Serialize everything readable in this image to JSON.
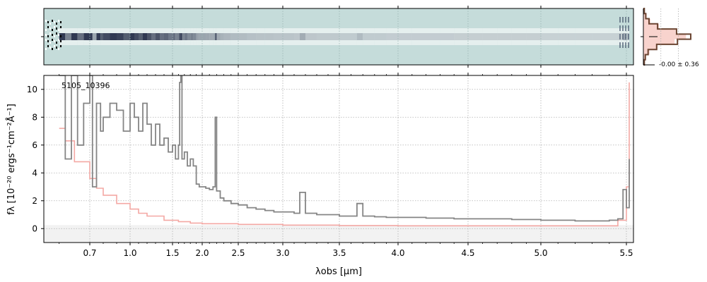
{
  "chart_data": [
    {
      "panel": "2d-spectrum",
      "type": "heatmap",
      "background_color": "#c5dcda",
      "trace_color": "#1c2540",
      "x_axis": "shared with spectrum panel",
      "tick_labels_visible": false
    },
    {
      "panel": "residual-histogram",
      "type": "bar",
      "annotation": "-0.00 ± 0.36",
      "bin_centers": [
        -3,
        -2.4,
        -1.8,
        -1.2,
        -0.6,
        0,
        0.6,
        1.2,
        1.8,
        2.4,
        3
      ],
      "counts": [
        0.02,
        0.05,
        0.12,
        0.3,
        0.7,
        1.0,
        0.72,
        0.28,
        0.1,
        0.04,
        0.02
      ],
      "reference_counts": [
        0.03,
        0.07,
        0.15,
        0.33,
        0.68,
        0.9,
        0.66,
        0.3,
        0.13,
        0.06,
        0.03
      ],
      "colors": {
        "data": "#6b4532",
        "reference": "#f6c8c0"
      }
    },
    {
      "panel": "1d-spectrum",
      "type": "line",
      "title": "5105_10396",
      "xlabel": "λobs [μm]",
      "ylabel": "fλ [10⁻²⁰ ergs⁻¹cm⁻²Å⁻¹]",
      "xlim": [
        0.55,
        5.55
      ],
      "ylim": [
        -1,
        11
      ],
      "x_ticks": [
        0.7,
        1.0,
        1.5,
        2.0,
        2.5,
        3.0,
        3.5,
        4.0,
        4.5,
        5.0,
        5.5
      ],
      "x_tick_labels": [
        "0.7",
        "1.0",
        "1.5",
        "2.0",
        "2.5",
        "3.0",
        "3.5",
        "4.0",
        "4.5",
        "5.0",
        "5.5"
      ],
      "y_ticks": [
        0,
        2,
        4,
        6,
        8,
        10
      ],
      "y_tick_labels": [
        "0",
        "2",
        "4",
        "6",
        "8",
        "10"
      ],
      "grid": true,
      "zero_line": true,
      "series": [
        {
          "role": "flux",
          "color": "#858585",
          "x": [
            0.6,
            0.62,
            0.64,
            0.66,
            0.68,
            0.7,
            0.72,
            0.75,
            0.78,
            0.8,
            0.85,
            0.9,
            0.95,
            1.0,
            1.05,
            1.1,
            1.15,
            1.2,
            1.25,
            1.3,
            1.35,
            1.4,
            1.45,
            1.5,
            1.55,
            1.6,
            1.62,
            1.64,
            1.66,
            1.7,
            1.75,
            1.8,
            1.85,
            1.9,
            1.95,
            2.0,
            2.05,
            2.1,
            2.15,
            2.18,
            2.2,
            2.25,
            2.3,
            2.4,
            2.5,
            2.6,
            2.7,
            2.8,
            2.9,
            3.0,
            3.1,
            3.15,
            3.2,
            3.3,
            3.4,
            3.5,
            3.6,
            3.65,
            3.7,
            3.8,
            3.9,
            4.0,
            4.1,
            4.2,
            4.3,
            4.4,
            4.5,
            4.6,
            4.7,
            4.8,
            4.9,
            5.0,
            5.1,
            5.2,
            5.3,
            5.4,
            5.45,
            5.48,
            5.5,
            5.52
          ],
          "y": [
            11,
            5,
            11,
            6,
            9,
            11,
            3,
            9,
            7,
            8,
            9,
            8.5,
            7,
            9,
            8,
            7,
            9,
            7.5,
            6,
            7.5,
            6,
            6.5,
            5.5,
            6,
            5,
            6,
            10.5,
            11,
            5,
            5.5,
            4.5,
            5,
            4.5,
            3.2,
            3,
            3,
            2.9,
            2.8,
            3,
            8,
            2.7,
            2.2,
            2,
            1.8,
            1.7,
            1.5,
            1.4,
            1.3,
            1.2,
            1.2,
            1.1,
            2.6,
            1.1,
            1,
            1,
            0.9,
            0.9,
            1.8,
            0.9,
            0.85,
            0.8,
            0.8,
            0.8,
            0.75,
            0.75,
            0.7,
            0.7,
            0.7,
            0.7,
            0.65,
            0.65,
            0.6,
            0.6,
            0.55,
            0.55,
            0.6,
            0.7,
            2.8,
            1.5,
            5
          ]
        },
        {
          "role": "uncertainty",
          "color": "#f4a8a4",
          "x": [
            0.6,
            0.62,
            0.65,
            0.7,
            0.75,
            0.8,
            0.9,
            1.0,
            1.1,
            1.2,
            1.4,
            1.6,
            1.8,
            2.0,
            2.5,
            3.0,
            3.5,
            4.0,
            4.5,
            5.0,
            5.3,
            5.45,
            5.5,
            5.52
          ],
          "y": [
            7.2,
            6.3,
            4.8,
            3.6,
            2.9,
            2.4,
            1.8,
            1.4,
            1.1,
            0.9,
            0.6,
            0.5,
            0.4,
            0.35,
            0.3,
            0.25,
            0.22,
            0.2,
            0.2,
            0.2,
            0.2,
            0.6,
            3,
            10.5
          ]
        }
      ]
    }
  ]
}
